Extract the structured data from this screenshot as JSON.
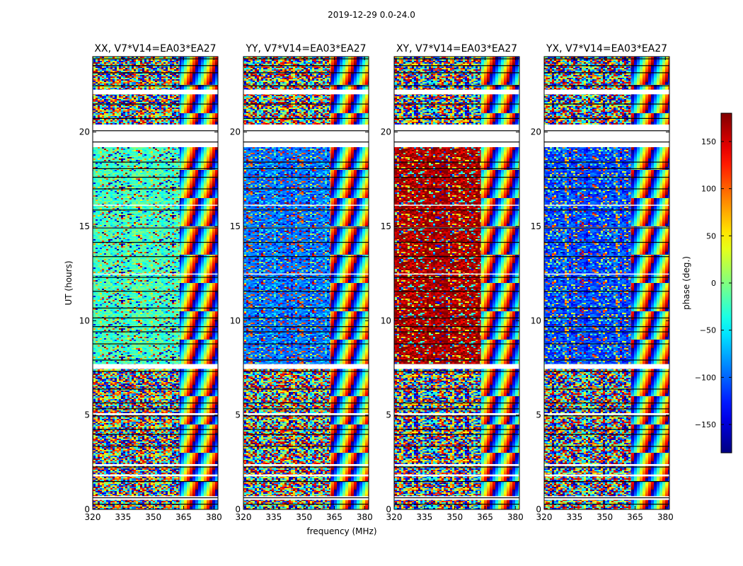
{
  "figure": {
    "suptitle": "2019-12-29 0.0-24.0"
  },
  "chart_data": {
    "type": "heatmap",
    "title": "2019-12-29 0.0-24.0",
    "xlabel": "frequency (MHz)",
    "ylabel": "UT (hours)",
    "xlim": [
      320,
      382
    ],
    "ylim": [
      0,
      24
    ],
    "x_ticks": [
      "320",
      "335",
      "350",
      "365",
      "380"
    ],
    "y_ticks": [
      "0",
      "5",
      "10",
      "15",
      "20"
    ],
    "panels": [
      {
        "title": "XX, V7*V14=EA03*EA27",
        "dominant_phase_deg": -20
      },
      {
        "title": "YY, V7*V14=EA03*EA27",
        "dominant_phase_deg": -95
      },
      {
        "title": "XY, V7*V14=EA03*EA27",
        "dominant_phase_deg": 165
      },
      {
        "title": "YX, V7*V14=EA03*EA27",
        "dominant_phase_deg": -110
      }
    ],
    "colorbar": {
      "label": "phase (deg.)",
      "range": [
        -180,
        180
      ],
      "ticks": [
        "150",
        "100",
        "50",
        "0",
        "−50",
        "−100",
        "−150"
      ],
      "tick_values": [
        150,
        100,
        50,
        0,
        -50,
        -100,
        -150
      ],
      "colormap": "jet"
    },
    "flagged_gaps_hours": [
      [
        19.2,
        20.4
      ],
      [
        7.45,
        7.7
      ],
      [
        22.0,
        22.25
      ],
      [
        0.5,
        0.7
      ],
      [
        1.75,
        1.85
      ],
      [
        5.0,
        5.1
      ],
      [
        2.3,
        2.4
      ],
      [
        12.45,
        12.5
      ],
      [
        14.9,
        14.95
      ],
      [
        16.1,
        16.15
      ]
    ]
  }
}
